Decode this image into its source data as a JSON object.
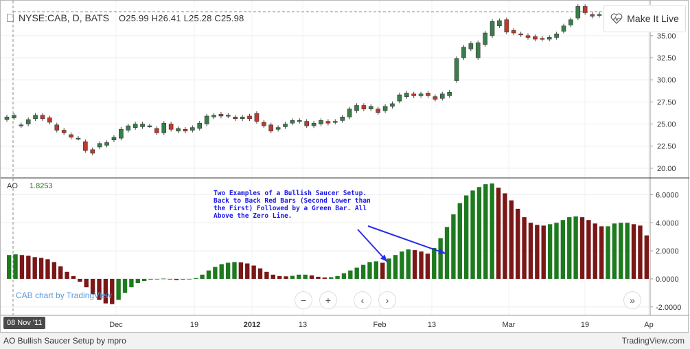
{
  "header": {
    "symbol": "NYSE:CAB, D, BATS",
    "ohlc": "O25.99  H26.41  L25.28  C25.98"
  },
  "make_it_live": "Make It Live",
  "ao": {
    "label": "AO",
    "value": "1.8253"
  },
  "watermark": "CAB chart by TradingView",
  "annotation": "Two Examples of a Bullish Saucer Setup. Back to Back Red Bars (Second Lower than the First) Followed by a Green Bar. All Above the Zero Line.",
  "date_marker": "08 Nov '11",
  "footer": {
    "left": "AO Bullish Saucer Setup by mpro",
    "right": "TradingView.com"
  },
  "nav": {
    "minus": "−",
    "plus": "+",
    "prev": "‹",
    "next": "›",
    "end": "»"
  },
  "colors": {
    "up": "#3a7d4a",
    "down": "#c0392b",
    "ao_up": "#1e7a1e",
    "ao_down": "#7a1717",
    "arrow": "#2b2be6"
  },
  "chart_data": [
    {
      "type": "candlestick",
      "title": "NYSE:CAB, D, BATS",
      "x_tick_labels": [
        "Dec",
        "19",
        "2012",
        "13",
        "Feb",
        "13",
        "Mar",
        "19",
        "Ap"
      ],
      "y_ticks": [
        20.0,
        22.5,
        25.0,
        27.5,
        30.0,
        32.5,
        35.0
      ],
      "y_tick_labels": [
        "20.00",
        "22.50",
        "25.00",
        "27.50",
        "30.00",
        "32.50",
        "35.00"
      ],
      "ylim": [
        18.9,
        38.8
      ],
      "candles": [
        [
          25.5,
          25.8
        ],
        [
          25.7,
          26.0
        ],
        [
          24.9,
          24.8
        ],
        [
          25.0,
          25.5
        ],
        [
          25.6,
          26.0
        ],
        [
          26.0,
          25.6
        ],
        [
          25.7,
          25.2
        ],
        [
          24.9,
          24.3
        ],
        [
          24.3,
          24.0
        ],
        [
          23.8,
          23.5
        ],
        [
          23.4,
          23.4
        ],
        [
          23.0,
          22.0
        ],
        [
          22.1,
          21.7
        ],
        [
          22.4,
          22.8
        ],
        [
          22.6,
          22.9
        ],
        [
          23.2,
          23.5
        ],
        [
          23.4,
          24.4
        ],
        [
          24.3,
          24.8
        ],
        [
          24.6,
          25.0
        ],
        [
          24.7,
          25.0
        ],
        [
          24.8,
          24.8
        ],
        [
          24.5,
          24.0
        ],
        [
          24.0,
          25.1
        ],
        [
          25.0,
          24.4
        ],
        [
          24.2,
          24.5
        ],
        [
          24.4,
          24.2
        ],
        [
          24.3,
          24.6
        ],
        [
          24.5,
          25.1
        ],
        [
          25.0,
          25.9
        ],
        [
          25.8,
          26.0
        ],
        [
          26.1,
          25.9
        ],
        [
          25.9,
          26.0
        ],
        [
          25.8,
          25.6
        ],
        [
          25.6,
          25.8
        ],
        [
          25.9,
          25.6
        ],
        [
          26.2,
          25.3
        ],
        [
          25.2,
          24.8
        ],
        [
          24.9,
          24.2
        ],
        [
          24.4,
          24.6
        ],
        [
          24.7,
          25.0
        ],
        [
          25.1,
          25.4
        ],
        [
          25.3,
          25.4
        ],
        [
          25.3,
          24.8
        ],
        [
          24.8,
          25.1
        ],
        [
          25.0,
          25.4
        ],
        [
          25.3,
          25.1
        ],
        [
          25.2,
          25.3
        ],
        [
          25.4,
          25.8
        ],
        [
          25.8,
          26.7
        ],
        [
          26.5,
          27.1
        ],
        [
          27.1,
          26.7
        ],
        [
          26.7,
          27.0
        ],
        [
          26.7,
          26.3
        ],
        [
          26.5,
          27.0
        ],
        [
          27.0,
          27.3
        ],
        [
          27.6,
          28.3
        ],
        [
          28.1,
          28.5
        ],
        [
          28.4,
          28.2
        ],
        [
          28.2,
          28.4
        ],
        [
          28.5,
          28.2
        ],
        [
          28.1,
          27.8
        ],
        [
          27.9,
          28.4
        ],
        [
          28.2,
          28.6
        ],
        [
          29.9,
          32.4
        ],
        [
          32.5,
          33.7
        ],
        [
          33.5,
          34.1
        ],
        [
          32.5,
          34.2
        ],
        [
          34.0,
          35.3
        ],
        [
          35.0,
          36.6
        ],
        [
          36.1,
          36.7
        ],
        [
          36.8,
          35.4
        ],
        [
          35.6,
          35.3
        ],
        [
          35.2,
          35.1
        ],
        [
          35.0,
          34.8
        ],
        [
          34.9,
          34.6
        ],
        [
          34.7,
          34.6
        ],
        [
          34.6,
          34.8
        ],
        [
          34.8,
          35.2
        ],
        [
          35.5,
          36.1
        ],
        [
          36.2,
          36.8
        ],
        [
          37.0,
          38.3
        ],
        [
          38.3,
          37.6
        ],
        [
          37.4,
          37.2
        ],
        [
          37.3,
          37.4
        ]
      ]
    },
    {
      "type": "bar",
      "title": "AO",
      "y_ticks": [
        -2.0,
        0.0,
        2.0,
        4.0,
        6.0
      ],
      "y_tick_labels": [
        "-2.0000",
        "0.0000",
        "2.0000",
        "4.0000",
        "6.0000"
      ],
      "ylim": [
        -2.6,
        7.1
      ],
      "values": [
        1.7,
        1.75,
        1.7,
        1.65,
        1.55,
        1.5,
        1.4,
        1.2,
        0.9,
        0.5,
        0.2,
        -0.2,
        -0.6,
        -1.1,
        -1.5,
        -1.75,
        -1.8,
        -1.5,
        -1.0,
        -0.6,
        -0.3,
        -0.15,
        -0.05,
        0.0,
        0.02,
        -0.02,
        -0.08,
        -0.05,
        0.0,
        0.05,
        0.3,
        0.6,
        0.85,
        1.05,
        1.15,
        1.2,
        1.18,
        1.1,
        0.95,
        0.75,
        0.5,
        0.3,
        0.2,
        0.18,
        0.22,
        0.3,
        0.3,
        0.25,
        0.15,
        0.1,
        0.12,
        0.2,
        0.4,
        0.6,
        0.8,
        1.0,
        1.2,
        1.25,
        1.15,
        1.45,
        1.7,
        1.95,
        2.1,
        2.05,
        1.95,
        1.8,
        2.2,
        2.9,
        3.7,
        4.6,
        5.4,
        5.95,
        6.3,
        6.55,
        6.75,
        6.8,
        6.5,
        6.1,
        5.6,
        5.0,
        4.4,
        4.0,
        3.85,
        3.8,
        3.9,
        4.0,
        4.2,
        4.4,
        4.45,
        4.4,
        4.2,
        3.95,
        3.75,
        3.75,
        3.95,
        4.0,
        4.0,
        3.9,
        3.8,
        3.1
      ],
      "zero_line": true
    }
  ]
}
